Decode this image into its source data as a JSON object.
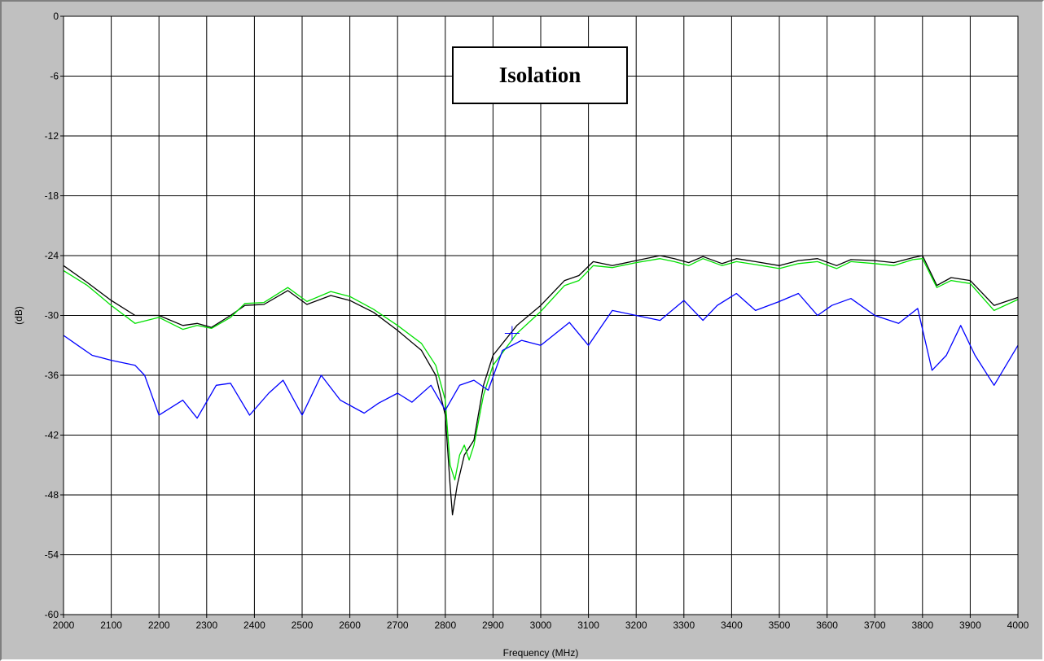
{
  "chart_data": {
    "type": "line",
    "title": "Isolation",
    "xlabel": "Frequency (MHz)",
    "ylabel": "(dB)",
    "xlim": [
      2000,
      4000
    ],
    "ylim": [
      -60,
      0
    ],
    "xticks": [
      "2000",
      "2100",
      "2200",
      "2300",
      "2400",
      "2500",
      "2600",
      "2700",
      "2800",
      "2900",
      "3000",
      "3100",
      "3200",
      "3300",
      "3400",
      "3500",
      "3600",
      "3700",
      "3800",
      "3900",
      "4000"
    ],
    "yticks": [
      "0",
      "-6",
      "-12",
      "-18",
      "-24",
      "-30",
      "-36",
      "-42",
      "-48",
      "-54",
      "-60"
    ],
    "grid": true,
    "colors": {
      "black": "#000000",
      "green": "#00e000",
      "blue": "#0000ff",
      "grid": "#000000",
      "plot_bg": "#ffffff"
    },
    "series": [
      {
        "color": "#000000",
        "points": [
          [
            2000,
            -25.0
          ],
          [
            2050,
            -26.7
          ],
          [
            2100,
            -28.5
          ],
          [
            2150,
            -30.0
          ],
          [
            2200,
            -30.0
          ],
          [
            2250,
            -31.0
          ],
          [
            2280,
            -30.8
          ],
          [
            2310,
            -31.2
          ],
          [
            2350,
            -30.0
          ],
          [
            2380,
            -29.0
          ],
          [
            2420,
            -28.9
          ],
          [
            2470,
            -27.5
          ],
          [
            2510,
            -28.9
          ],
          [
            2560,
            -28.0
          ],
          [
            2600,
            -28.5
          ],
          [
            2650,
            -29.7
          ],
          [
            2700,
            -31.5
          ],
          [
            2750,
            -33.5
          ],
          [
            2780,
            -36.0
          ],
          [
            2800,
            -40.0
          ],
          [
            2810,
            -47.0
          ],
          [
            2815,
            -50.0
          ],
          [
            2825,
            -47.0
          ],
          [
            2840,
            -44.0
          ],
          [
            2860,
            -42.5
          ],
          [
            2880,
            -37.0
          ],
          [
            2900,
            -34.0
          ],
          [
            2950,
            -31.0
          ],
          [
            3000,
            -29.0
          ],
          [
            3050,
            -26.5
          ],
          [
            3080,
            -26.0
          ],
          [
            3110,
            -24.6
          ],
          [
            3150,
            -25.0
          ],
          [
            3200,
            -24.5
          ],
          [
            3250,
            -24.0
          ],
          [
            3280,
            -24.3
          ],
          [
            3310,
            -24.7
          ],
          [
            3340,
            -24.1
          ],
          [
            3380,
            -24.8
          ],
          [
            3410,
            -24.3
          ],
          [
            3450,
            -24.6
          ],
          [
            3500,
            -25.0
          ],
          [
            3540,
            -24.5
          ],
          [
            3580,
            -24.3
          ],
          [
            3620,
            -25.0
          ],
          [
            3650,
            -24.4
          ],
          [
            3700,
            -24.5
          ],
          [
            3740,
            -24.7
          ],
          [
            3780,
            -24.2
          ],
          [
            3800,
            -24.0
          ],
          [
            3830,
            -27.0
          ],
          [
            3860,
            -26.2
          ],
          [
            3900,
            -26.5
          ],
          [
            3950,
            -29.0
          ],
          [
            4000,
            -28.2
          ]
        ]
      },
      {
        "color": "#00e000",
        "points": [
          [
            2000,
            -25.5
          ],
          [
            2050,
            -27.0
          ],
          [
            2100,
            -29.0
          ],
          [
            2150,
            -30.8
          ],
          [
            2200,
            -30.2
          ],
          [
            2250,
            -31.4
          ],
          [
            2280,
            -31.0
          ],
          [
            2310,
            -31.3
          ],
          [
            2350,
            -30.2
          ],
          [
            2380,
            -28.8
          ],
          [
            2420,
            -28.7
          ],
          [
            2470,
            -27.2
          ],
          [
            2510,
            -28.6
          ],
          [
            2560,
            -27.6
          ],
          [
            2600,
            -28.1
          ],
          [
            2650,
            -29.4
          ],
          [
            2700,
            -31.0
          ],
          [
            2750,
            -32.8
          ],
          [
            2780,
            -35.0
          ],
          [
            2800,
            -38.5
          ],
          [
            2810,
            -45.0
          ],
          [
            2820,
            -46.5
          ],
          [
            2830,
            -44.0
          ],
          [
            2840,
            -43.0
          ],
          [
            2850,
            -44.5
          ],
          [
            2860,
            -43.0
          ],
          [
            2880,
            -38.0
          ],
          [
            2900,
            -35.0
          ],
          [
            2950,
            -31.8
          ],
          [
            3000,
            -29.6
          ],
          [
            3050,
            -27.0
          ],
          [
            3080,
            -26.5
          ],
          [
            3110,
            -25.0
          ],
          [
            3150,
            -25.2
          ],
          [
            3200,
            -24.7
          ],
          [
            3250,
            -24.3
          ],
          [
            3280,
            -24.6
          ],
          [
            3310,
            -25.0
          ],
          [
            3340,
            -24.3
          ],
          [
            3380,
            -25.0
          ],
          [
            3410,
            -24.6
          ],
          [
            3450,
            -24.9
          ],
          [
            3500,
            -25.3
          ],
          [
            3540,
            -24.8
          ],
          [
            3580,
            -24.6
          ],
          [
            3620,
            -25.3
          ],
          [
            3650,
            -24.6
          ],
          [
            3700,
            -24.8
          ],
          [
            3740,
            -25.0
          ],
          [
            3780,
            -24.4
          ],
          [
            3800,
            -24.3
          ],
          [
            3830,
            -27.2
          ],
          [
            3860,
            -26.5
          ],
          [
            3900,
            -26.8
          ],
          [
            3950,
            -29.5
          ],
          [
            4000,
            -28.4
          ]
        ]
      },
      {
        "color": "#0000ff",
        "points": [
          [
            2000,
            -32.0
          ],
          [
            2030,
            -33.0
          ],
          [
            2060,
            -34.0
          ],
          [
            2100,
            -34.5
          ],
          [
            2150,
            -35.0
          ],
          [
            2170,
            -36.0
          ],
          [
            2200,
            -40.0
          ],
          [
            2250,
            -38.5
          ],
          [
            2280,
            -40.3
          ],
          [
            2320,
            -37.0
          ],
          [
            2350,
            -36.8
          ],
          [
            2390,
            -40.0
          ],
          [
            2430,
            -37.8
          ],
          [
            2460,
            -36.5
          ],
          [
            2500,
            -40.0
          ],
          [
            2540,
            -36.0
          ],
          [
            2580,
            -38.5
          ],
          [
            2630,
            -39.8
          ],
          [
            2660,
            -38.8
          ],
          [
            2700,
            -37.8
          ],
          [
            2730,
            -38.7
          ],
          [
            2770,
            -37.0
          ],
          [
            2800,
            -39.5
          ],
          [
            2830,
            -37.0
          ],
          [
            2860,
            -36.5
          ],
          [
            2890,
            -37.5
          ],
          [
            2920,
            -33.5
          ],
          [
            2960,
            -32.5
          ],
          [
            3000,
            -33.0
          ],
          [
            3060,
            -30.7
          ],
          [
            3100,
            -33.0
          ],
          [
            3150,
            -29.5
          ],
          [
            3200,
            -30.0
          ],
          [
            3250,
            -30.5
          ],
          [
            3300,
            -28.5
          ],
          [
            3340,
            -30.5
          ],
          [
            3370,
            -29.0
          ],
          [
            3410,
            -27.8
          ],
          [
            3450,
            -29.5
          ],
          [
            3500,
            -28.6
          ],
          [
            3540,
            -27.8
          ],
          [
            3580,
            -30.0
          ],
          [
            3610,
            -29.0
          ],
          [
            3650,
            -28.3
          ],
          [
            3700,
            -30.0
          ],
          [
            3750,
            -30.8
          ],
          [
            3790,
            -29.3
          ],
          [
            3820,
            -35.5
          ],
          [
            3850,
            -34.0
          ],
          [
            3880,
            -31.0
          ],
          [
            3910,
            -34.0
          ],
          [
            3950,
            -37.0
          ],
          [
            4000,
            -33.0
          ]
        ]
      }
    ]
  }
}
